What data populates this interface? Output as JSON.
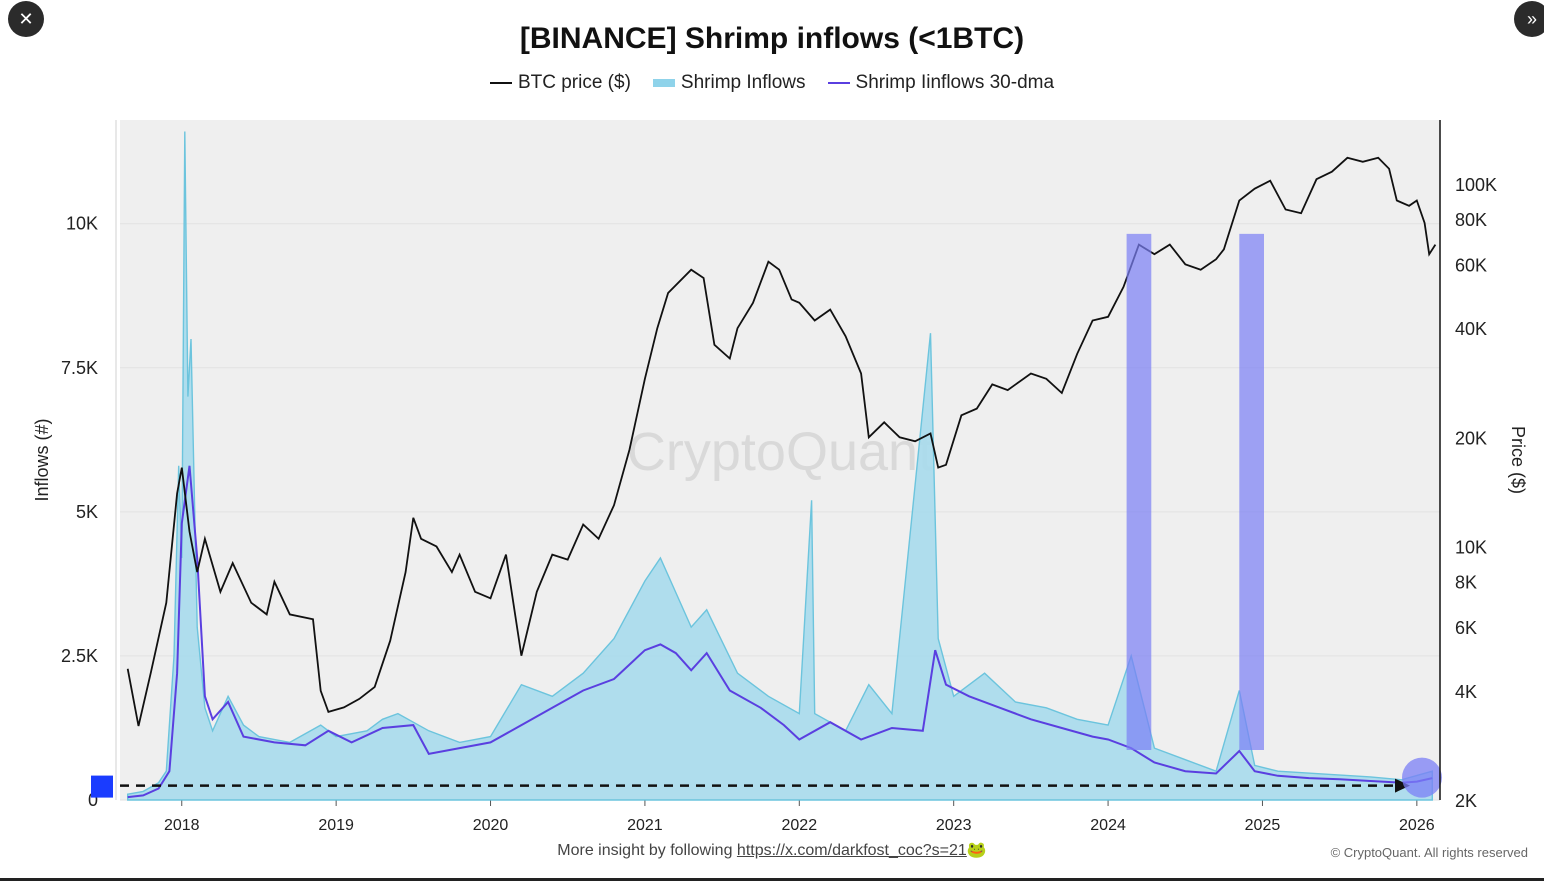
{
  "ui": {
    "close_glyph": "✕",
    "expand_glyph": "»"
  },
  "footer": {
    "prefix": "More insight by following",
    "link": "https://x.com/darkfost_coc?s=21",
    "emoji": "🐸",
    "copyright": "© CryptoQuant. All rights reserved"
  },
  "chart_data": {
    "type": "area",
    "title": "[BINANCE] Shrimp inflows (<1BTC)",
    "watermark": "CryptoQuant",
    "left_axis_label": "Inflows (#)",
    "right_axis_label": "Price ($)",
    "left_ylim": [
      0,
      11800
    ],
    "left_ticks": [
      {
        "v": 0,
        "label": "0"
      },
      {
        "v": 2500,
        "label": "2.5K"
      },
      {
        "v": 5000,
        "label": "5K"
      },
      {
        "v": 7500,
        "label": "7.5K"
      },
      {
        "v": 10000,
        "label": "10K"
      }
    ],
    "right_scale": "log",
    "right_ylim": [
      2000,
      150000
    ],
    "right_ticks": [
      {
        "v": 2000,
        "label": "2K"
      },
      {
        "v": 4000,
        "label": "4K"
      },
      {
        "v": 6000,
        "label": "6K"
      },
      {
        "v": 8000,
        "label": "8K"
      },
      {
        "v": 10000,
        "label": "10K"
      },
      {
        "v": 20000,
        "label": "20K"
      },
      {
        "v": 40000,
        "label": "40K"
      },
      {
        "v": 60000,
        "label": "60K"
      },
      {
        "v": 80000,
        "label": "80K"
      },
      {
        "v": 100000,
        "label": "100K"
      }
    ],
    "xlim": [
      2017.6,
      2026.15
    ],
    "x_ticks": [
      {
        "v": 2018.0,
        "label": "2018"
      },
      {
        "v": 2019.0,
        "label": "2019"
      },
      {
        "v": 2020.0,
        "label": "2020"
      },
      {
        "v": 2021.0,
        "label": "2021"
      },
      {
        "v": 2022.0,
        "label": "2022"
      },
      {
        "v": 2023.0,
        "label": "2023"
      },
      {
        "v": 2024.0,
        "label": "2024"
      },
      {
        "v": 2025.0,
        "label": "2025"
      },
      {
        "v": 2026.0,
        "label": "2026"
      }
    ],
    "series": [
      {
        "name": "BTC price ($)",
        "color": "#111111",
        "axis": "right",
        "points": [
          [
            2017.65,
            4600
          ],
          [
            2017.72,
            3200
          ],
          [
            2017.8,
            4500
          ],
          [
            2017.9,
            7000
          ],
          [
            2017.97,
            14000
          ],
          [
            2018.0,
            16500
          ],
          [
            2018.05,
            11000
          ],
          [
            2018.1,
            8500
          ],
          [
            2018.15,
            10500
          ],
          [
            2018.25,
            7500
          ],
          [
            2018.33,
            9000
          ],
          [
            2018.45,
            7000
          ],
          [
            2018.55,
            6500
          ],
          [
            2018.6,
            8000
          ],
          [
            2018.7,
            6500
          ],
          [
            2018.85,
            6300
          ],
          [
            2018.9,
            4000
          ],
          [
            2018.95,
            3500
          ],
          [
            2019.05,
            3600
          ],
          [
            2019.15,
            3800
          ],
          [
            2019.25,
            4100
          ],
          [
            2019.35,
            5500
          ],
          [
            2019.45,
            8500
          ],
          [
            2019.5,
            12000
          ],
          [
            2019.55,
            10500
          ],
          [
            2019.65,
            10000
          ],
          [
            2019.75,
            8500
          ],
          [
            2019.8,
            9500
          ],
          [
            2019.9,
            7500
          ],
          [
            2020.0,
            7200
          ],
          [
            2020.1,
            9500
          ],
          [
            2020.2,
            5000
          ],
          [
            2020.3,
            7500
          ],
          [
            2020.4,
            9500
          ],
          [
            2020.5,
            9200
          ],
          [
            2020.6,
            11500
          ],
          [
            2020.7,
            10500
          ],
          [
            2020.8,
            13000
          ],
          [
            2020.9,
            18500
          ],
          [
            2021.0,
            29000
          ],
          [
            2021.08,
            40000
          ],
          [
            2021.15,
            50000
          ],
          [
            2021.3,
            58000
          ],
          [
            2021.38,
            55000
          ],
          [
            2021.45,
            36000
          ],
          [
            2021.55,
            33000
          ],
          [
            2021.6,
            40000
          ],
          [
            2021.7,
            47000
          ],
          [
            2021.8,
            61000
          ],
          [
            2021.87,
            58000
          ],
          [
            2021.95,
            48000
          ],
          [
            2022.0,
            47000
          ],
          [
            2022.1,
            42000
          ],
          [
            2022.2,
            45000
          ],
          [
            2022.3,
            38000
          ],
          [
            2022.4,
            30000
          ],
          [
            2022.45,
            20000
          ],
          [
            2022.55,
            22000
          ],
          [
            2022.65,
            20000
          ],
          [
            2022.75,
            19500
          ],
          [
            2022.85,
            20500
          ],
          [
            2022.9,
            16500
          ],
          [
            2022.95,
            16800
          ],
          [
            2023.05,
            23000
          ],
          [
            2023.15,
            24000
          ],
          [
            2023.25,
            28000
          ],
          [
            2023.35,
            27000
          ],
          [
            2023.5,
            30000
          ],
          [
            2023.6,
            29000
          ],
          [
            2023.7,
            26500
          ],
          [
            2023.8,
            34000
          ],
          [
            2023.9,
            42000
          ],
          [
            2024.0,
            43000
          ],
          [
            2024.1,
            52000
          ],
          [
            2024.2,
            68000
          ],
          [
            2024.3,
            64000
          ],
          [
            2024.4,
            68000
          ],
          [
            2024.5,
            60000
          ],
          [
            2024.6,
            58000
          ],
          [
            2024.7,
            62000
          ],
          [
            2024.75,
            66000
          ],
          [
            2024.85,
            90000
          ],
          [
            2024.95,
            97000
          ],
          [
            2025.05,
            102000
          ],
          [
            2025.15,
            85000
          ],
          [
            2025.25,
            83000
          ],
          [
            2025.35,
            103000
          ],
          [
            2025.45,
            108000
          ],
          [
            2025.55,
            118000
          ],
          [
            2025.65,
            115000
          ],
          [
            2025.75,
            118000
          ],
          [
            2025.82,
            110000
          ],
          [
            2025.87,
            90000
          ],
          [
            2025.95,
            87000
          ],
          [
            2026.0,
            90000
          ],
          [
            2026.05,
            78000
          ],
          [
            2026.08,
            64000
          ],
          [
            2026.12,
            68000
          ]
        ]
      },
      {
        "name": "Shrimp Inflows",
        "color": "#5ec0dc",
        "axis": "left",
        "points": [
          [
            2017.65,
            100
          ],
          [
            2017.75,
            150
          ],
          [
            2017.85,
            300
          ],
          [
            2017.9,
            500
          ],
          [
            2017.95,
            2500
          ],
          [
            2017.98,
            5800
          ],
          [
            2018.0,
            4200
          ],
          [
            2018.02,
            11600
          ],
          [
            2018.04,
            7000
          ],
          [
            2018.06,
            8000
          ],
          [
            2018.1,
            3000
          ],
          [
            2018.15,
            1600
          ],
          [
            2018.2,
            1200
          ],
          [
            2018.3,
            1800
          ],
          [
            2018.4,
            1300
          ],
          [
            2018.5,
            1100
          ],
          [
            2018.7,
            1000
          ],
          [
            2018.9,
            1300
          ],
          [
            2019.0,
            1100
          ],
          [
            2019.2,
            1200
          ],
          [
            2019.3,
            1400
          ],
          [
            2019.4,
            1500
          ],
          [
            2019.6,
            1200
          ],
          [
            2019.8,
            1000
          ],
          [
            2020.0,
            1100
          ],
          [
            2020.2,
            2000
          ],
          [
            2020.4,
            1800
          ],
          [
            2020.6,
            2200
          ],
          [
            2020.8,
            2800
          ],
          [
            2021.0,
            3800
          ],
          [
            2021.1,
            4200
          ],
          [
            2021.2,
            3600
          ],
          [
            2021.3,
            3000
          ],
          [
            2021.4,
            3300
          ],
          [
            2021.6,
            2200
          ],
          [
            2021.8,
            1800
          ],
          [
            2022.0,
            1500
          ],
          [
            2022.08,
            5200
          ],
          [
            2022.1,
            1500
          ],
          [
            2022.3,
            1200
          ],
          [
            2022.45,
            2000
          ],
          [
            2022.6,
            1500
          ],
          [
            2022.85,
            8100
          ],
          [
            2022.9,
            2800
          ],
          [
            2023.0,
            1800
          ],
          [
            2023.2,
            2200
          ],
          [
            2023.4,
            1700
          ],
          [
            2023.6,
            1600
          ],
          [
            2023.8,
            1400
          ],
          [
            2024.0,
            1300
          ],
          [
            2024.15,
            2500
          ],
          [
            2024.3,
            900
          ],
          [
            2024.5,
            700
          ],
          [
            2024.7,
            500
          ],
          [
            2024.85,
            1900
          ],
          [
            2024.95,
            600
          ],
          [
            2025.1,
            500
          ],
          [
            2025.4,
            450
          ],
          [
            2025.7,
            400
          ],
          [
            2025.9,
            350
          ],
          [
            2026.1,
            500
          ]
        ]
      },
      {
        "name": "Shrimp Iinflows 30-dma",
        "color": "#5a3fe0",
        "axis": "left",
        "points": [
          [
            2017.65,
            50
          ],
          [
            2017.75,
            80
          ],
          [
            2017.85,
            200
          ],
          [
            2017.92,
            500
          ],
          [
            2017.97,
            2200
          ],
          [
            2018.0,
            4800
          ],
          [
            2018.05,
            5800
          ],
          [
            2018.1,
            4200
          ],
          [
            2018.15,
            1800
          ],
          [
            2018.2,
            1400
          ],
          [
            2018.3,
            1700
          ],
          [
            2018.4,
            1100
          ],
          [
            2018.6,
            1000
          ],
          [
            2018.8,
            950
          ],
          [
            2018.95,
            1200
          ],
          [
            2019.1,
            1000
          ],
          [
            2019.3,
            1250
          ],
          [
            2019.5,
            1300
          ],
          [
            2019.6,
            800
          ],
          [
            2019.8,
            900
          ],
          [
            2020.0,
            1000
          ],
          [
            2020.2,
            1300
          ],
          [
            2020.4,
            1600
          ],
          [
            2020.6,
            1900
          ],
          [
            2020.8,
            2100
          ],
          [
            2021.0,
            2600
          ],
          [
            2021.1,
            2700
          ],
          [
            2021.2,
            2550
          ],
          [
            2021.3,
            2250
          ],
          [
            2021.4,
            2550
          ],
          [
            2021.55,
            1900
          ],
          [
            2021.75,
            1600
          ],
          [
            2021.9,
            1300
          ],
          [
            2022.0,
            1050
          ],
          [
            2022.2,
            1350
          ],
          [
            2022.4,
            1050
          ],
          [
            2022.6,
            1250
          ],
          [
            2022.8,
            1200
          ],
          [
            2022.88,
            2600
          ],
          [
            2022.95,
            2000
          ],
          [
            2023.1,
            1800
          ],
          [
            2023.3,
            1600
          ],
          [
            2023.5,
            1400
          ],
          [
            2023.7,
            1250
          ],
          [
            2023.9,
            1100
          ],
          [
            2024.0,
            1050
          ],
          [
            2024.15,
            900
          ],
          [
            2024.3,
            650
          ],
          [
            2024.5,
            500
          ],
          [
            2024.7,
            460
          ],
          [
            2024.85,
            850
          ],
          [
            2024.95,
            500
          ],
          [
            2025.1,
            420
          ],
          [
            2025.3,
            380
          ],
          [
            2025.5,
            360
          ],
          [
            2025.7,
            330
          ],
          [
            2025.9,
            300
          ],
          [
            2026.0,
            320
          ],
          [
            2026.1,
            380
          ]
        ]
      }
    ],
    "highlight_bands": [
      [
        2024.12,
        2024.28
      ],
      [
        2024.85,
        2025.01
      ]
    ],
    "baseline_value": 250
  }
}
